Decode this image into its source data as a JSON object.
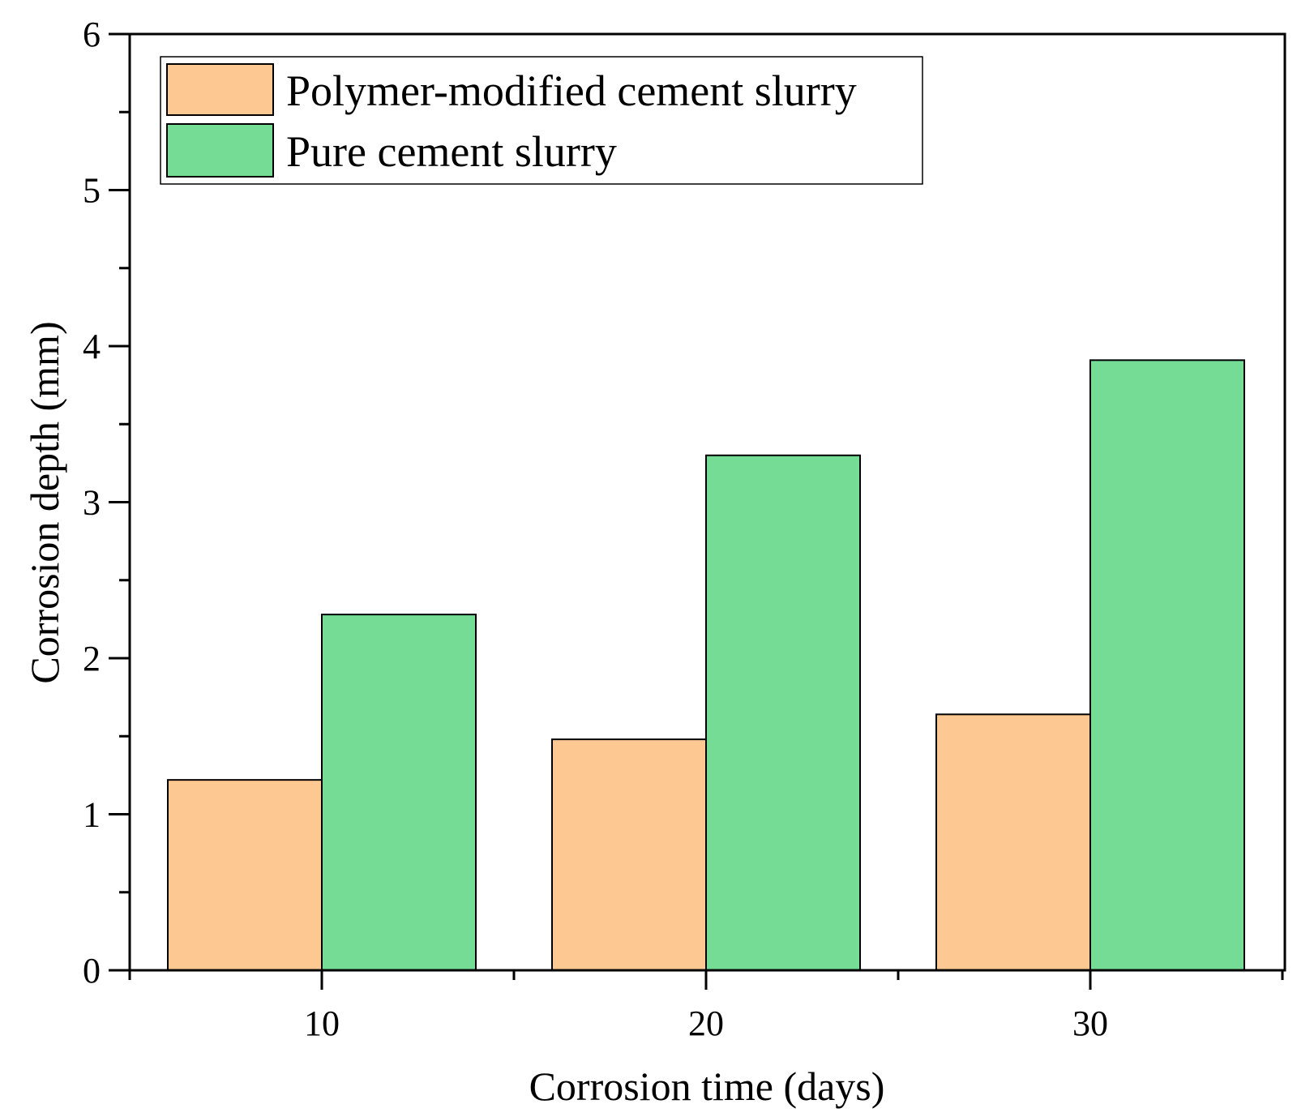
{
  "chart_data": {
    "type": "bar",
    "xlabel": "Corrosion time (days)",
    "ylabel": "Corrosion depth (mm)",
    "categories": [
      "10",
      "20",
      "30"
    ],
    "series": [
      {
        "name": "Polymer-modified cement slurry",
        "values": [
          1.22,
          1.48,
          1.64
        ],
        "color": "#fec893"
      },
      {
        "name": "Pure cement slurry",
        "values": [
          2.28,
          3.3,
          3.91
        ],
        "color": "#74dc95"
      }
    ],
    "ylim": [
      0,
      6
    ],
    "yticks": [
      "0",
      "1",
      "2",
      "3",
      "4",
      "5",
      "6"
    ],
    "grid": false,
    "legend_position": "top-left"
  }
}
